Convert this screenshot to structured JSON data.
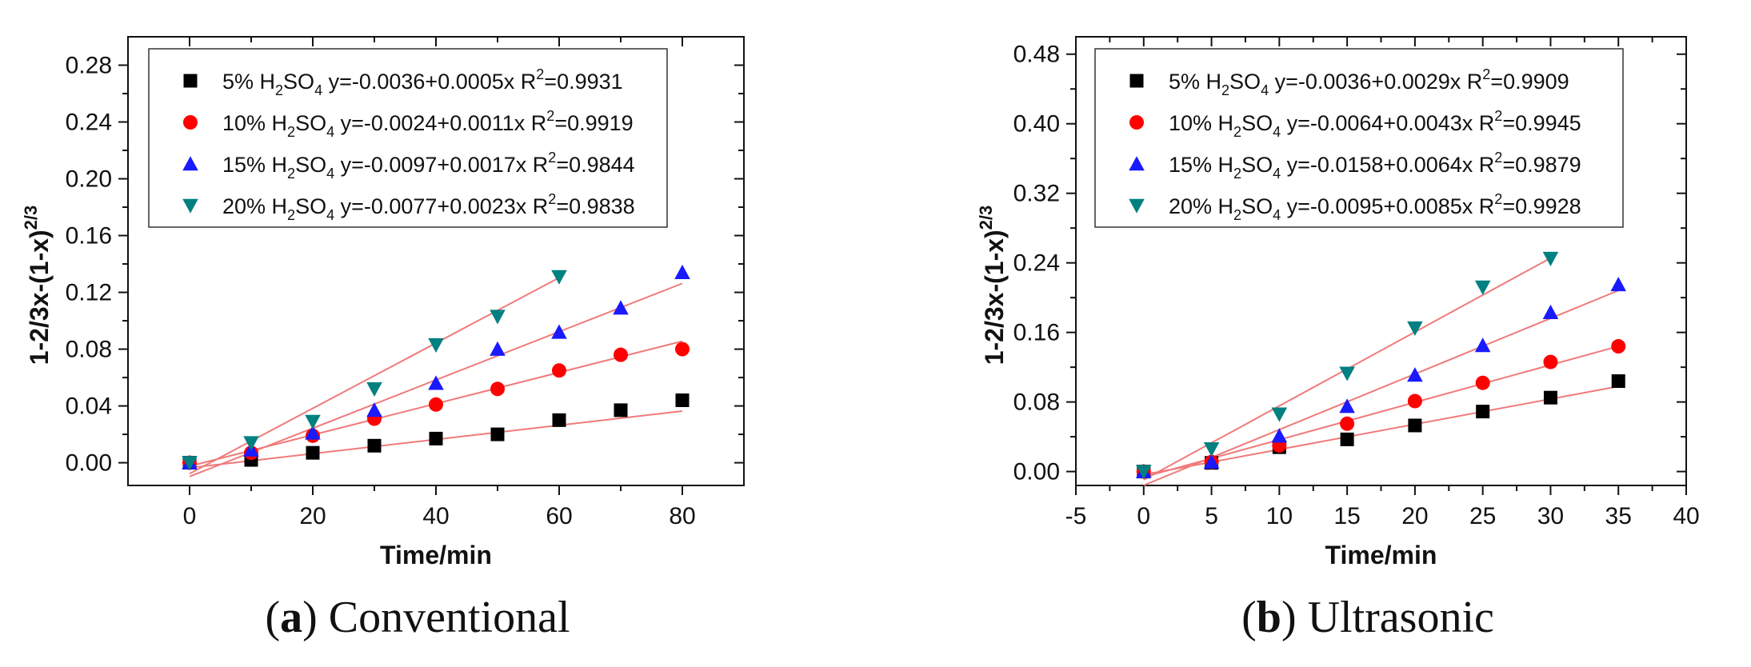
{
  "colors": {
    "fit_line": "#f07a7a",
    "axis": "#111111",
    "series": [
      "#000000",
      "#ff0000",
      "#1a1aff",
      "#008080"
    ]
  },
  "chart_data": [
    {
      "type": "scatter",
      "panel": "a",
      "caption": {
        "letter": "a",
        "text": "Conventional"
      },
      "xlabel": "Time/min",
      "ylabel": "1-2/3x-(1-x)",
      "ylabel_sup": "2/3",
      "xlim": [
        -10,
        90
      ],
      "ylim": [
        -0.016,
        0.3
      ],
      "xticks": [
        0,
        20,
        40,
        60,
        80
      ],
      "xtick_labels": [
        "0",
        "20",
        "40",
        "60",
        "80"
      ],
      "yticks": [
        0.0,
        0.04,
        0.08,
        0.12,
        0.16,
        0.2,
        0.24,
        0.28
      ],
      "ytick_labels": [
        "0.00",
        "0.04",
        "0.08",
        "0.12",
        "0.16",
        "0.20",
        "0.24",
        "0.28"
      ],
      "legend_position": "top",
      "series": [
        {
          "name": "5% H2SO4",
          "label_pct": "5%",
          "marker": "square",
          "color": "#000000",
          "fit_text": "y=-0.0036+0.0005x",
          "r2_text": "=0.9931",
          "intercept": -0.0036,
          "slope": 0.0005,
          "fit_x": [
            0,
            80
          ],
          "x": [
            0,
            10,
            20,
            30,
            40,
            50,
            60,
            70,
            80
          ],
          "y": [
            0.0,
            0.002,
            0.007,
            0.012,
            0.017,
            0.02,
            0.03,
            0.037,
            0.044
          ]
        },
        {
          "name": "10% H2SO4",
          "label_pct": "10%",
          "marker": "circle",
          "color": "#ff0000",
          "fit_text": "y=-0.0024+0.0011x",
          "r2_text": "=0.9919",
          "intercept": -0.0024,
          "slope": 0.0011,
          "fit_x": [
            0,
            80
          ],
          "x": [
            0,
            10,
            20,
            30,
            40,
            50,
            60,
            70,
            80
          ],
          "y": [
            0.0,
            0.007,
            0.019,
            0.031,
            0.041,
            0.052,
            0.065,
            0.076,
            0.08
          ]
        },
        {
          "name": "15% H2SO4",
          "label_pct": "15%",
          "marker": "triangle-up",
          "color": "#1a1aff",
          "fit_text": "y=-0.0097+0.0017x",
          "r2_text": "=0.9844",
          "intercept": -0.0097,
          "slope": 0.0017,
          "fit_x": [
            0,
            80
          ],
          "x": [
            0,
            10,
            20,
            30,
            40,
            50,
            60,
            70,
            80
          ],
          "y": [
            0.0,
            0.009,
            0.021,
            0.037,
            0.056,
            0.08,
            0.092,
            0.109,
            0.134
          ]
        },
        {
          "name": "20% H2SO4",
          "label_pct": "20%",
          "marker": "triangle-down",
          "color": "#008080",
          "fit_text": "y=-0.0077+0.0023x",
          "r2_text": "=0.9838",
          "intercept": -0.0077,
          "slope": 0.0023,
          "fit_x": [
            0,
            60
          ],
          "x": [
            0,
            10,
            20,
            30,
            40,
            50,
            60
          ],
          "y": [
            0.0,
            0.014,
            0.029,
            0.052,
            0.083,
            0.103,
            0.131
          ]
        }
      ]
    },
    {
      "type": "scatter",
      "panel": "b",
      "caption": {
        "letter": "b",
        "text": "Ultrasonic"
      },
      "xlabel": "Time/min",
      "ylabel": "1-2/3x-(1-x)",
      "ylabel_sup": "2/3",
      "xlim": [
        -5,
        40
      ],
      "ylim": [
        -0.016,
        0.5
      ],
      "xticks": [
        -5,
        0,
        5,
        10,
        15,
        20,
        25,
        30,
        35,
        40
      ],
      "xtick_labels": [
        "-5",
        "0",
        "5",
        "10",
        "15",
        "20",
        "25",
        "30",
        "35",
        "40"
      ],
      "yticks": [
        0.0,
        0.08,
        0.16,
        0.24,
        0.32,
        0.4,
        0.48
      ],
      "ytick_labels": [
        "0.00",
        "0.08",
        "0.16",
        "0.24",
        "0.32",
        "0.40",
        "0.48"
      ],
      "legend_position": "top",
      "series": [
        {
          "name": "5% H2SO4",
          "label_pct": "5%",
          "marker": "square",
          "color": "#000000",
          "fit_text": "y=-0.0036+0.0029x",
          "r2_text": "=0.9909",
          "intercept": -0.0036,
          "slope": 0.0029,
          "fit_x": [
            0,
            35
          ],
          "x": [
            0,
            5,
            10,
            15,
            20,
            25,
            30,
            35
          ],
          "y": [
            0.0,
            0.01,
            0.028,
            0.037,
            0.053,
            0.069,
            0.085,
            0.104
          ]
        },
        {
          "name": "10% H2SO4",
          "label_pct": "10%",
          "marker": "circle",
          "color": "#ff0000",
          "fit_text": "y=-0.0064+0.0043x",
          "r2_text": "=0.9945",
          "intercept": -0.0064,
          "slope": 0.0043,
          "fit_x": [
            0,
            35
          ],
          "x": [
            0,
            5,
            10,
            15,
            20,
            25,
            30,
            35
          ],
          "y": [
            0.0,
            0.011,
            0.03,
            0.055,
            0.081,
            0.102,
            0.126,
            0.144
          ]
        },
        {
          "name": "15% H2SO4",
          "label_pct": "15%",
          "marker": "triangle-up",
          "color": "#1a1aff",
          "fit_text": "y=-0.0158+0.0064x",
          "r2_text": "=0.9879",
          "intercept": -0.0158,
          "slope": 0.0064,
          "fit_x": [
            0,
            35
          ],
          "x": [
            0,
            5,
            10,
            15,
            20,
            25,
            30,
            35
          ],
          "y": [
            0.0,
            0.011,
            0.041,
            0.075,
            0.111,
            0.145,
            0.183,
            0.215
          ]
        },
        {
          "name": "20% H2SO4",
          "label_pct": "20%",
          "marker": "triangle-down",
          "color": "#008080",
          "fit_text": "y=-0.0095+0.0085x",
          "r2_text": "=0.9928",
          "intercept": -0.0095,
          "slope": 0.0085,
          "fit_x": [
            0,
            30
          ],
          "x": [
            0,
            5,
            10,
            15,
            20,
            25,
            30
          ],
          "y": [
            0.0,
            0.026,
            0.066,
            0.113,
            0.165,
            0.212,
            0.245
          ]
        }
      ]
    }
  ]
}
